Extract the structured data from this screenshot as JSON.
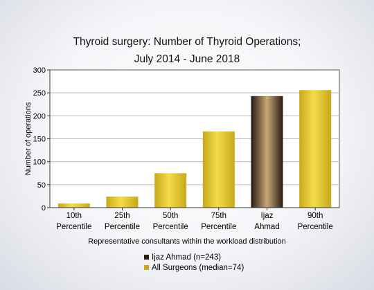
{
  "chart_data": {
    "type": "bar",
    "title": [
      "Thyroid surgery: Number of Thyroid Operations;",
      "July 2014 - June 2018"
    ],
    "xlabel": "Representative consultants within the workload distribution",
    "ylabel": "Number of operations",
    "ylim": [
      0,
      300
    ],
    "yticks": [
      "0",
      "50",
      "100",
      "150",
      "200",
      "250",
      "300"
    ],
    "grid": true,
    "categories": [
      [
        "10th",
        "Percentile"
      ],
      [
        "25th",
        "Percentile"
      ],
      [
        "50th",
        "Percentile"
      ],
      [
        "75th",
        "Percentile"
      ],
      [
        "Ijaz",
        "Ahmad"
      ],
      [
        "90th",
        "Percentile"
      ]
    ],
    "values": [
      9,
      24,
      75,
      166,
      243,
      256
    ],
    "highlight_index": 4,
    "colors": {
      "all_surgeons": "#c9a81a",
      "all_surgeons_light": "#f2dc4a",
      "consultant": "#2a1a12",
      "consultant_light": "#c6a977"
    },
    "legend": [
      {
        "label": "Ijaz Ahmad (n=243)",
        "color": "#2a1a12"
      },
      {
        "label": "All Surgeons (median=74)",
        "color": "#c9a81a"
      }
    ]
  }
}
